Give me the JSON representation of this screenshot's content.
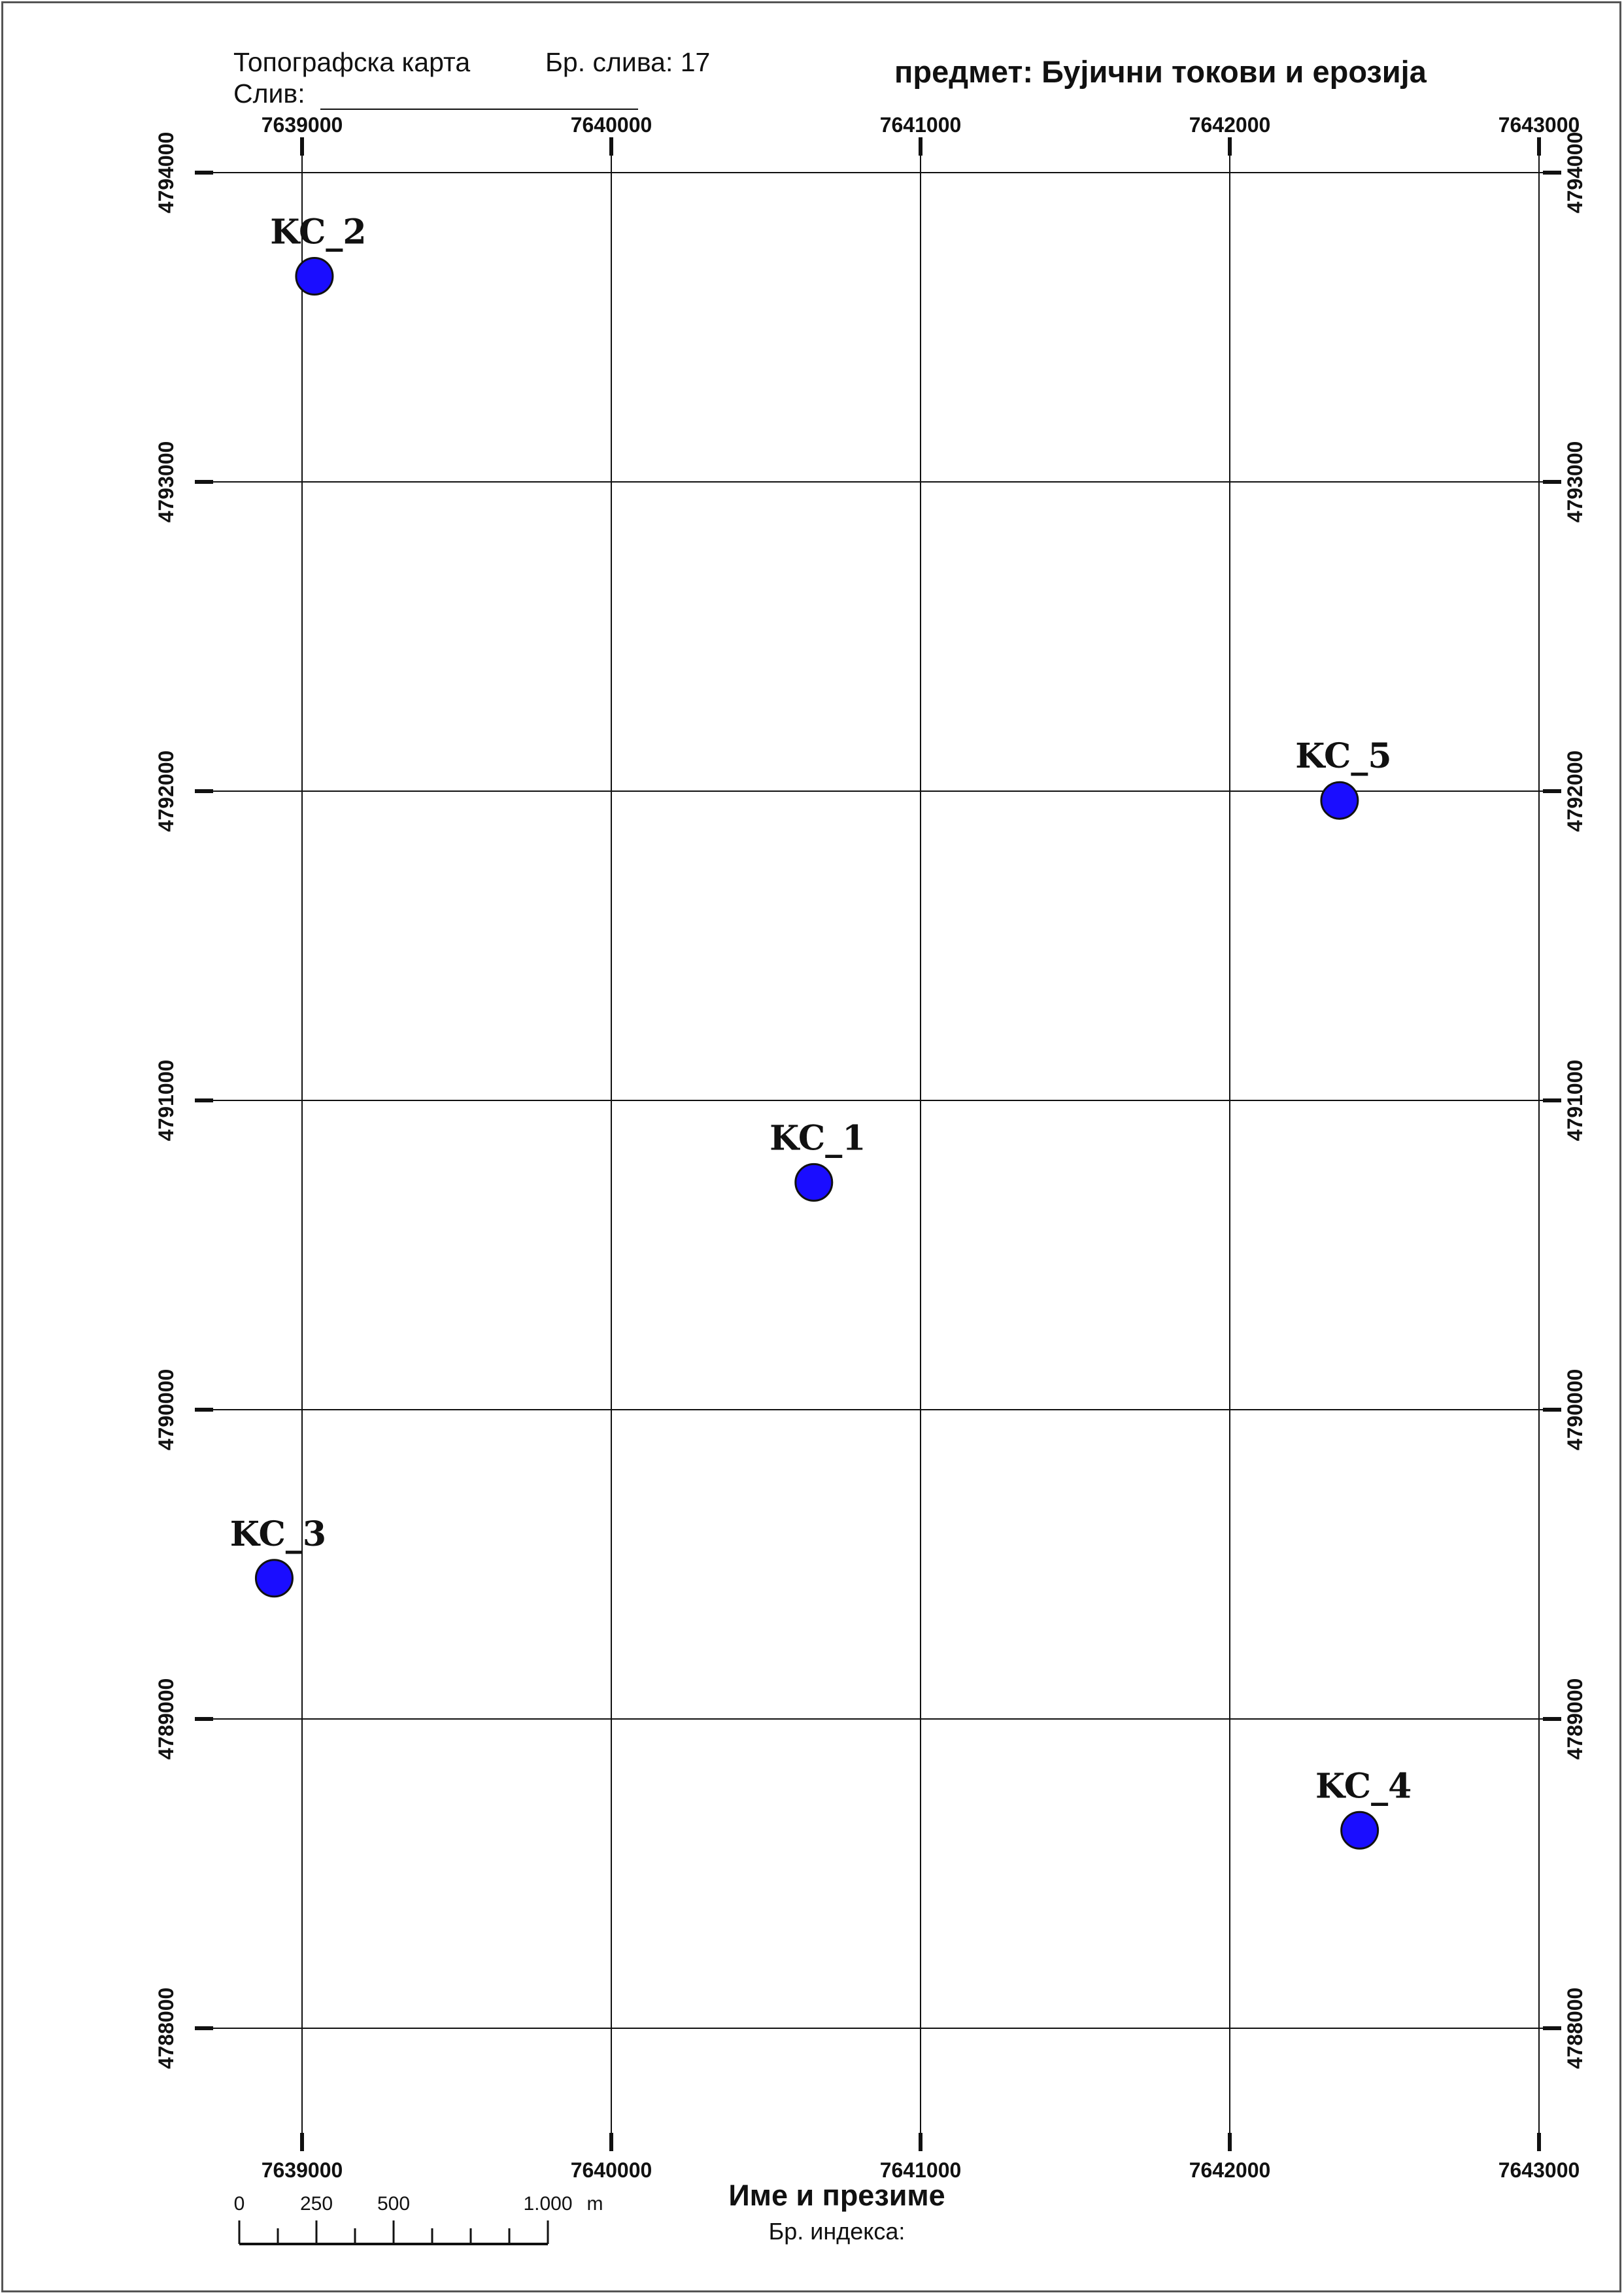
{
  "header": {
    "map_type": "Топографска карта",
    "basin_no_label": "Бр. слива: 17",
    "basin_label": "Слив:",
    "subject": "предмет: Бујични токови и ерозија"
  },
  "grid": {
    "eastings": [
      "7639000",
      "7640000",
      "7641000",
      "7642000",
      "7643000"
    ],
    "northings": [
      "4794000",
      "4793000",
      "4792000",
      "4791000",
      "4790000",
      "4789000",
      "4788000"
    ]
  },
  "points": [
    {
      "label": "KC_2",
      "easting": 7639040,
      "northing": 4793665
    },
    {
      "label": "KC_5",
      "easting": 7642355,
      "northing": 4791970
    },
    {
      "label": "KC_1",
      "easting": 7640655,
      "northing": 4790735
    },
    {
      "label": "KC_3",
      "easting": 7638910,
      "northing": 4789455
    },
    {
      "label": "KC_4",
      "easting": 7642420,
      "northing": 4788640
    }
  ],
  "scale_bar": {
    "ticks": [
      "0",
      "250",
      "500",
      "1.000"
    ],
    "unit": "m"
  },
  "footer": {
    "name_label": "Име и презиме",
    "index_label": "Бр. индекса:"
  },
  "colors": {
    "point_fill": "#1a0dff",
    "grid": "#111111"
  }
}
